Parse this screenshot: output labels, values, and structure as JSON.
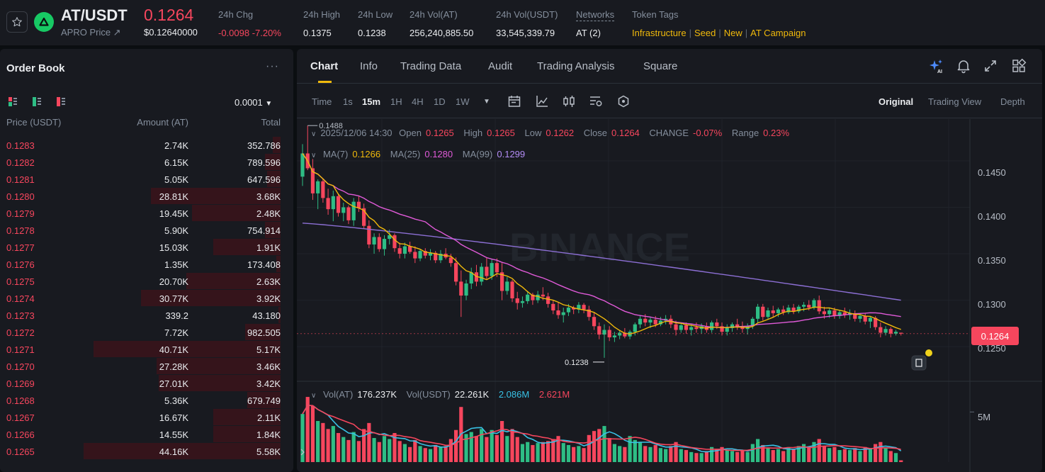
{
  "ticker": {
    "symbol": "AT/USDT",
    "subtitle": "APRO Price ↗",
    "last_price": "0.1264",
    "last_price_usd": "$0.12640000",
    "stats": [
      {
        "label": "24h Chg",
        "value": "-0.0098 -7.20%"
      },
      {
        "label": "24h High",
        "value": "0.1375"
      },
      {
        "label": "24h Low",
        "value": "0.1238"
      },
      {
        "label": "24h Vol(AT)",
        "value": "256,240,885.50"
      },
      {
        "label": "24h Vol(USDT)",
        "value": "33,545,339.79"
      },
      {
        "label": "Networks",
        "value": "AT (2)"
      }
    ],
    "token_tags_label": "Token Tags",
    "token_tags": [
      "Infrastructure",
      "Seed",
      "New",
      "AT Campaign"
    ],
    "up_color": "#2ebd85",
    "down_color": "#f6465d"
  },
  "orderbook": {
    "title": "Order Book",
    "precision": "0.0001",
    "headers": {
      "price": "Price (USDT)",
      "amount": "Amount (AT)",
      "total": "Total"
    },
    "asks": [
      {
        "price": "0.1283",
        "amount": "2.74K",
        "total": "352.786",
        "depth": 0.04
      },
      {
        "price": "0.1282",
        "amount": "6.15K",
        "total": "789.596",
        "depth": 0.08
      },
      {
        "price": "0.1281",
        "amount": "5.05K",
        "total": "647.596",
        "depth": 0.07
      },
      {
        "price": "0.1280",
        "amount": "28.81K",
        "total": "3.68K",
        "depth": 0.66
      },
      {
        "price": "0.1279",
        "amount": "19.45K",
        "total": "2.48K",
        "depth": 0.45
      },
      {
        "price": "0.1278",
        "amount": "5.90K",
        "total": "754.914",
        "depth": 0.08
      },
      {
        "price": "0.1277",
        "amount": "15.03K",
        "total": "1.91K",
        "depth": 0.34
      },
      {
        "price": "0.1276",
        "amount": "1.35K",
        "total": "173.408",
        "depth": 0.02
      },
      {
        "price": "0.1275",
        "amount": "20.70K",
        "total": "2.63K",
        "depth": 0.48
      },
      {
        "price": "0.1274",
        "amount": "30.77K",
        "total": "3.92K",
        "depth": 0.71
      },
      {
        "price": "0.1273",
        "amount": "339.2",
        "total": "43.180",
        "depth": 0.01
      },
      {
        "price": "0.1272",
        "amount": "7.72K",
        "total": "982.505",
        "depth": 0.18
      },
      {
        "price": "0.1271",
        "amount": "40.71K",
        "total": "5.17K",
        "depth": 0.95
      },
      {
        "price": "0.1270",
        "amount": "27.28K",
        "total": "3.46K",
        "depth": 0.63
      },
      {
        "price": "0.1269",
        "amount": "27.01K",
        "total": "3.42K",
        "depth": 0.62
      },
      {
        "price": "0.1268",
        "amount": "5.36K",
        "total": "679.749",
        "depth": 0.17
      },
      {
        "price": "0.1267",
        "amount": "16.67K",
        "total": "2.11K",
        "depth": 0.34
      },
      {
        "price": "0.1266",
        "amount": "14.55K",
        "total": "1.84K",
        "depth": 0.34
      },
      {
        "price": "0.1265",
        "amount": "44.16K",
        "total": "5.58K",
        "depth": 1.0
      }
    ]
  },
  "tabs": [
    "Chart",
    "Info",
    "Trading Data",
    "Audit",
    "Trading Analysis",
    "Square"
  ],
  "active_tab": "Chart",
  "toolbar": {
    "time_label": "Time",
    "intervals": [
      "1s",
      "15m",
      "1H",
      "4H",
      "1D",
      "1W"
    ],
    "active_interval": "15m",
    "views": [
      "Original",
      "Trading View",
      "Depth"
    ],
    "active_view": "Original"
  },
  "legend": {
    "datetime": "2025/12/06 14:30",
    "open_label": "Open",
    "open": "0.1265",
    "high_label": "High",
    "high": "0.1265",
    "low_label": "Low",
    "low": "0.1262",
    "close_label": "Close",
    "close": "0.1264",
    "change_label": "CHANGE",
    "change": "-0.07%",
    "range_label": "Range",
    "range": "0.23%",
    "ma7_label": "MA(7)",
    "ma7": "0.1266",
    "ma25_label": "MA(25)",
    "ma25": "0.1280",
    "ma99_label": "MA(99)",
    "ma99": "0.1299",
    "vol_label": "Vol(AT)",
    "vol": "176.237K",
    "volusdt_label": "Vol(USDT)",
    "volusdt": "22.261K",
    "vol_ma1": "2.086M",
    "vol_ma2": "2.621M"
  },
  "watermark": "BINANCE",
  "chart_data": {
    "type": "candlestick",
    "interval": "15m",
    "price_ticks": [
      "0.1450",
      "0.1400",
      "0.1350",
      "0.1300",
      "0.1250"
    ],
    "volume_ticks": [
      "5M"
    ],
    "marked_high": "0.1488",
    "marked_low": "0.1238",
    "last_price": "0.1264",
    "price_range": [
      0.1215,
      0.1495
    ],
    "volume_range": [
      0,
      7000000
    ],
    "ma_colors": {
      "ma7": "#f0b90b",
      "ma25": "#e05ad8",
      "ma99": "#8c6fd4",
      "vol_ma5": "#38c2e6",
      "vol_ma10": "#f6465d"
    },
    "candles": [
      [
        0.1433,
        0.1468,
        0.1423,
        0.1458,
        4800000
      ],
      [
        0.1458,
        0.1488,
        0.144,
        0.1442,
        6500000
      ],
      [
        0.1442,
        0.1452,
        0.1408,
        0.1415,
        5600000
      ],
      [
        0.1415,
        0.143,
        0.1398,
        0.1428,
        4100000
      ],
      [
        0.1428,
        0.1431,
        0.1405,
        0.141,
        3900000
      ],
      [
        0.141,
        0.142,
        0.1392,
        0.1398,
        3300000
      ],
      [
        0.1398,
        0.1418,
        0.1385,
        0.1412,
        3600000
      ],
      [
        0.1412,
        0.1415,
        0.139,
        0.1394,
        2900000
      ],
      [
        0.1394,
        0.1405,
        0.1385,
        0.14,
        2500000
      ],
      [
        0.14,
        0.1402,
        0.1382,
        0.1386,
        2200000
      ],
      [
        0.1386,
        0.141,
        0.138,
        0.1406,
        3000000
      ],
      [
        0.1406,
        0.1412,
        0.1395,
        0.1399,
        2100000
      ],
      [
        0.1399,
        0.1404,
        0.1377,
        0.138,
        3300000
      ],
      [
        0.138,
        0.1386,
        0.1356,
        0.136,
        3900000
      ],
      [
        0.136,
        0.1372,
        0.135,
        0.1368,
        2400000
      ],
      [
        0.1368,
        0.1372,
        0.1352,
        0.1355,
        2000000
      ],
      [
        0.1355,
        0.137,
        0.1348,
        0.1366,
        2600000
      ],
      [
        0.1366,
        0.1376,
        0.136,
        0.137,
        2300000
      ],
      [
        0.137,
        0.1372,
        0.1352,
        0.1356,
        2900000
      ],
      [
        0.1356,
        0.1362,
        0.1345,
        0.135,
        2100000
      ],
      [
        0.135,
        0.1362,
        0.1345,
        0.1358,
        1800000
      ],
      [
        0.1358,
        0.1363,
        0.135,
        0.1352,
        1500000
      ],
      [
        0.1352,
        0.1358,
        0.134,
        0.1345,
        2200000
      ],
      [
        0.1345,
        0.1355,
        0.1342,
        0.1353,
        1600000
      ],
      [
        0.1353,
        0.1356,
        0.1345,
        0.1348,
        1400000
      ],
      [
        0.1348,
        0.1355,
        0.1343,
        0.1351,
        1300000
      ],
      [
        0.1351,
        0.1353,
        0.134,
        0.1343,
        1700000
      ],
      [
        0.1343,
        0.1354,
        0.134,
        0.135,
        1500000
      ],
      [
        0.135,
        0.1356,
        0.1344,
        0.1346,
        1600000
      ],
      [
        0.1346,
        0.135,
        0.1336,
        0.134,
        2300000
      ],
      [
        0.134,
        0.1346,
        0.1316,
        0.132,
        3200000
      ],
      [
        0.132,
        0.1332,
        0.1282,
        0.1305,
        5500000
      ],
      [
        0.1305,
        0.1322,
        0.13,
        0.1318,
        2800000
      ],
      [
        0.1318,
        0.1335,
        0.1312,
        0.133,
        3000000
      ],
      [
        0.133,
        0.1338,
        0.1315,
        0.132,
        2600000
      ],
      [
        0.132,
        0.134,
        0.1316,
        0.1336,
        3300000
      ],
      [
        0.1336,
        0.1346,
        0.1322,
        0.1326,
        2500000
      ],
      [
        0.1326,
        0.1344,
        0.1322,
        0.134,
        3200000
      ],
      [
        0.134,
        0.1345,
        0.1325,
        0.133,
        2700000
      ],
      [
        0.133,
        0.134,
        0.13,
        0.131,
        4100000
      ],
      [
        0.131,
        0.1325,
        0.1306,
        0.132,
        2600000
      ],
      [
        0.132,
        0.1322,
        0.1298,
        0.1302,
        3300000
      ],
      [
        0.1302,
        0.1309,
        0.129,
        0.1297,
        2500000
      ],
      [
        0.1297,
        0.1304,
        0.1292,
        0.1299,
        1800000
      ],
      [
        0.1299,
        0.131,
        0.1296,
        0.1306,
        2000000
      ],
      [
        0.1306,
        0.1308,
        0.1295,
        0.13,
        1700000
      ],
      [
        0.13,
        0.131,
        0.1297,
        0.1306,
        1900000
      ],
      [
        0.1306,
        0.1314,
        0.13,
        0.1304,
        2000000
      ],
      [
        0.1304,
        0.1308,
        0.1292,
        0.1296,
        2100000
      ],
      [
        0.1296,
        0.13,
        0.1285,
        0.1289,
        2300000
      ],
      [
        0.1289,
        0.1298,
        0.128,
        0.1284,
        2600000
      ],
      [
        0.1284,
        0.1292,
        0.1276,
        0.1287,
        1900000
      ],
      [
        0.1287,
        0.1296,
        0.1283,
        0.1292,
        1700000
      ],
      [
        0.1292,
        0.1294,
        0.1285,
        0.129,
        1500000
      ],
      [
        0.129,
        0.1298,
        0.1286,
        0.1295,
        1600000
      ],
      [
        0.1295,
        0.1297,
        0.1286,
        0.129,
        1400000
      ],
      [
        0.129,
        0.1294,
        0.1278,
        0.1282,
        2700000
      ],
      [
        0.1282,
        0.1287,
        0.1268,
        0.1272,
        3100000
      ],
      [
        0.1272,
        0.1276,
        0.1258,
        0.1263,
        3300000
      ],
      [
        0.1263,
        0.1274,
        0.1238,
        0.1268,
        3600000
      ],
      [
        0.1268,
        0.1272,
        0.1256,
        0.126,
        2400000
      ],
      [
        0.126,
        0.1266,
        0.1255,
        0.1262,
        1800000
      ],
      [
        0.1262,
        0.1268,
        0.1258,
        0.1265,
        1600000
      ],
      [
        0.1265,
        0.127,
        0.1259,
        0.1261,
        1500000
      ],
      [
        0.1261,
        0.1268,
        0.1258,
        0.1266,
        2600000
      ],
      [
        0.1266,
        0.1276,
        0.1262,
        0.1274,
        2200000
      ],
      [
        0.1274,
        0.1284,
        0.127,
        0.128,
        2000000
      ],
      [
        0.128,
        0.1285,
        0.1272,
        0.1276,
        1600000
      ],
      [
        0.1276,
        0.1282,
        0.127,
        0.1279,
        1500000
      ],
      [
        0.1279,
        0.1283,
        0.1271,
        0.1274,
        1700000
      ],
      [
        0.1274,
        0.1282,
        0.1272,
        0.1278,
        1400000
      ],
      [
        0.1278,
        0.1284,
        0.1274,
        0.128,
        1300000
      ],
      [
        0.128,
        0.1284,
        0.127,
        0.1274,
        1600000
      ],
      [
        0.1274,
        0.1278,
        0.1262,
        0.1268,
        2000000
      ],
      [
        0.1268,
        0.1276,
        0.1265,
        0.1273,
        1300000
      ],
      [
        0.1273,
        0.1276,
        0.1264,
        0.1268,
        1200000
      ],
      [
        0.1268,
        0.1274,
        0.1262,
        0.1271,
        1000000
      ],
      [
        0.1271,
        0.1276,
        0.1265,
        0.1269,
        900000
      ],
      [
        0.1269,
        0.1275,
        0.1264,
        0.1272,
        900000
      ],
      [
        0.1272,
        0.1276,
        0.1265,
        0.1268,
        1100000
      ],
      [
        0.1268,
        0.1278,
        0.1265,
        0.1276,
        1500000
      ],
      [
        0.1276,
        0.128,
        0.1269,
        0.1272,
        1300000
      ],
      [
        0.1272,
        0.1276,
        0.1262,
        0.1266,
        1500000
      ],
      [
        0.1266,
        0.1274,
        0.1262,
        0.127,
        1200000
      ],
      [
        0.127,
        0.1276,
        0.1266,
        0.1274,
        1100000
      ],
      [
        0.1274,
        0.128,
        0.1268,
        0.1271,
        1000000
      ],
      [
        0.1271,
        0.1277,
        0.1265,
        0.1269,
        1200000
      ],
      [
        0.1269,
        0.1275,
        0.1263,
        0.1272,
        1000000
      ],
      [
        0.1272,
        0.1282,
        0.1269,
        0.128,
        1800000
      ],
      [
        0.128,
        0.1296,
        0.1276,
        0.1293,
        2300000
      ],
      [
        0.1293,
        0.1296,
        0.1278,
        0.1282,
        1700000
      ],
      [
        0.1282,
        0.1292,
        0.128,
        0.1289,
        1400000
      ],
      [
        0.1289,
        0.1294,
        0.1282,
        0.1286,
        1200000
      ],
      [
        0.1286,
        0.1292,
        0.1282,
        0.129,
        1300000
      ],
      [
        0.129,
        0.1294,
        0.1284,
        0.1287,
        1100000
      ],
      [
        0.1287,
        0.1295,
        0.1285,
        0.1292,
        1500000
      ],
      [
        0.1292,
        0.1296,
        0.1285,
        0.1288,
        1300000
      ],
      [
        0.1288,
        0.1295,
        0.1286,
        0.1293,
        1600000
      ],
      [
        0.1293,
        0.1298,
        0.1288,
        0.1295,
        1800000
      ],
      [
        0.1295,
        0.13,
        0.1289,
        0.1292,
        1500000
      ],
      [
        0.1292,
        0.1302,
        0.129,
        0.13,
        2000000
      ],
      [
        0.13,
        0.1305,
        0.1285,
        0.1288,
        2300000
      ],
      [
        0.1288,
        0.1293,
        0.128,
        0.1285,
        1600000
      ],
      [
        0.1285,
        0.1292,
        0.1281,
        0.1289,
        1400000
      ],
      [
        0.1289,
        0.1292,
        0.128,
        0.1283,
        1500000
      ],
      [
        0.1283,
        0.1289,
        0.128,
        0.1287,
        1200000
      ],
      [
        0.1287,
        0.1292,
        0.1281,
        0.1284,
        1300000
      ],
      [
        0.1284,
        0.129,
        0.1279,
        0.1286,
        1200000
      ],
      [
        0.1286,
        0.1289,
        0.1277,
        0.128,
        1400000
      ],
      [
        0.128,
        0.1285,
        0.1276,
        0.1283,
        1100000
      ],
      [
        0.1283,
        0.1286,
        0.1274,
        0.1277,
        1500000
      ],
      [
        0.1277,
        0.1283,
        0.127,
        0.1281,
        1300000
      ],
      [
        0.1281,
        0.1283,
        0.1268,
        0.1271,
        1800000
      ],
      [
        0.1271,
        0.1276,
        0.126,
        0.1265,
        2000000
      ],
      [
        0.1265,
        0.1272,
        0.1262,
        0.1269,
        1400000
      ],
      [
        0.1269,
        0.1271,
        0.126,
        0.1264,
        1100000
      ],
      [
        0.1264,
        0.1268,
        0.1262,
        0.1266,
        900000
      ],
      [
        0.1265,
        0.1265,
        0.1262,
        0.1264,
        176237
      ]
    ]
  }
}
